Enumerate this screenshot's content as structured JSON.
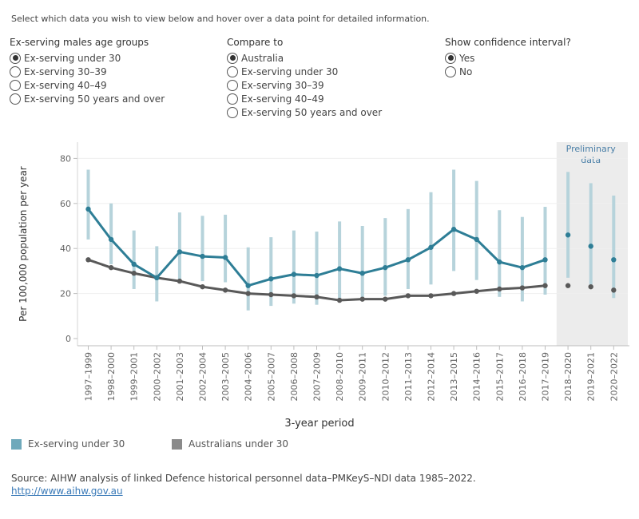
{
  "instructions": "Select which data you wish to view below and hover over a data point for detailed information.",
  "filters": {
    "age_groups": {
      "title": "Ex-serving males age groups",
      "options": [
        "Ex-serving under 30",
        "Ex-serving 30–39",
        "Ex-serving 40–49",
        "Ex-serving 50 years and over"
      ],
      "selected": 0
    },
    "compare": {
      "title": "Compare to",
      "options": [
        "Australia",
        "Ex-serving under 30",
        "Ex-serving 30–39",
        "Ex-serving 40–49",
        "Ex-serving 50 years and over"
      ],
      "selected": 0
    },
    "ci": {
      "title": "Show confidence interval?",
      "options": [
        "Yes",
        "No"
      ],
      "selected": 0
    }
  },
  "chart_data": {
    "type": "line",
    "xlabel": "3-year period",
    "ylabel": "Per 100,000 population per year",
    "ylim": [
      0,
      85
    ],
    "yticks": [
      0,
      20,
      40,
      60,
      80
    ],
    "grid": true,
    "categories": [
      "1997–1999",
      "1998–2000",
      "1999–2001",
      "2000–2002",
      "2001–2003",
      "2002–2004",
      "2003–2005",
      "2004–2006",
      "2005–2007",
      "2006–2008",
      "2007–2009",
      "2008–2010",
      "2009–2011",
      "2010–2012",
      "2011–2013",
      "2012–2014",
      "2013–2015",
      "2014–2016",
      "2015–2017",
      "2016–2018",
      "2017–2019",
      "2018–2020",
      "2019–2021",
      "2020–2022"
    ],
    "preliminary_label": "Preliminary data",
    "preliminary_categories": [
      "2018–2020",
      "2019–2021",
      "2020–2022"
    ],
    "series": [
      {
        "name": "Ex-serving under 30",
        "color": "#2e7e96",
        "ci_color": "#b6d3db",
        "values": [
          57.5,
          44,
          33,
          27,
          38.5,
          36.5,
          36,
          23.5,
          26.5,
          28.5,
          28,
          31,
          29,
          31.5,
          35,
          40.5,
          48.5,
          44,
          34,
          31.5,
          35,
          46,
          41,
          35
        ],
        "ci_low": [
          44,
          33,
          22,
          16.5,
          26,
          25.5,
          25,
          12.5,
          14.5,
          15.5,
          15,
          18,
          17,
          19,
          22,
          24,
          30,
          26,
          18.5,
          16.5,
          19.5,
          27,
          24,
          18
        ],
        "ci_high": [
          75,
          60,
          48,
          41,
          56,
          54.5,
          55,
          40.5,
          45,
          48,
          47.5,
          52,
          50,
          53.5,
          57.5,
          65,
          75,
          70,
          57,
          54,
          58.5,
          74,
          69,
          63.5
        ]
      },
      {
        "name": "Australians under 30",
        "color": "#595959",
        "values": [
          35,
          31.5,
          29,
          27,
          25.5,
          23,
          21.5,
          20,
          19.5,
          19,
          18.5,
          17,
          17.5,
          17.5,
          19,
          19,
          20,
          21,
          22,
          22.5,
          23.5,
          23.5,
          23,
          21.5
        ],
        "ci_low": [
          34,
          30.5,
          28,
          26,
          24.5,
          22,
          20.5,
          19,
          18.5,
          18,
          17.5,
          16,
          16.5,
          16.5,
          18,
          18,
          19,
          20,
          21,
          21.5,
          22.5,
          22.5,
          22,
          20.5
        ],
        "ci_high": [
          36,
          32.5,
          30,
          28,
          26.5,
          24,
          22.5,
          21,
          20.5,
          20,
          19.5,
          18,
          18.5,
          18.5,
          20,
          20,
          21,
          22,
          23,
          23.5,
          24.5,
          24.5,
          24,
          22.5
        ]
      }
    ]
  },
  "legend": [
    {
      "label": "Ex-serving under 30",
      "color": "#6fa9bb"
    },
    {
      "label": "Australians under 30",
      "color": "#8a8a8a"
    }
  ],
  "source": "Source: AIHW analysis of linked Defence historical personnel data–PMKeyS–NDI data 1985–2022.",
  "link": "http://www.aihw.gov.au"
}
